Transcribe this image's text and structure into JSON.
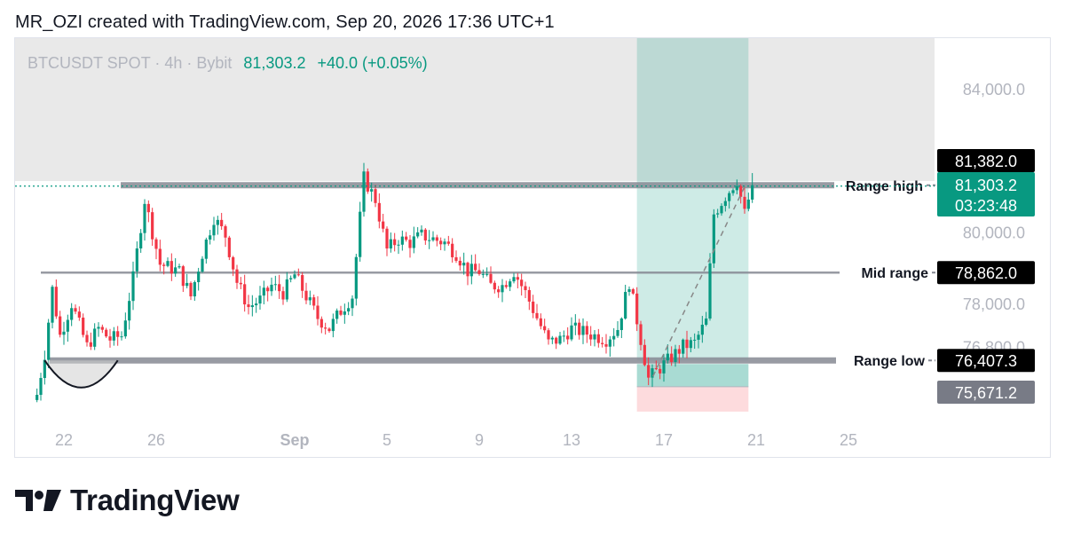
{
  "header": {
    "text": "MR_OZI created with TradingView.com, Sep 20, 2026 17:36 UTC+1"
  },
  "legend": {
    "symbol": "BTCUSDT SPOT · 4h · Bybit",
    "price": "81,303.2",
    "change": "+40.0 (+0.05%)"
  },
  "brand": {
    "name": "TradingView",
    "logo_icon": "tradingview-logo-icon"
  },
  "colors": {
    "up": "#089981",
    "down": "#f23645",
    "level_line": "#868993",
    "tp_zone": "#089981",
    "sl_zone": "#f23645",
    "supply_zone": "#e9e9e9"
  },
  "chart_data": {
    "type": "candlestick",
    "timeframe": "4h",
    "y_axis": {
      "ticks": [
        {
          "value": 84000,
          "label": "84,000.0"
        },
        {
          "value": 80000,
          "label": "80,000.0"
        },
        {
          "value": 78000,
          "label": "78,000.0"
        },
        {
          "value": 76800,
          "label": "76,800.0"
        }
      ]
    },
    "x_axis": {
      "ticks": [
        {
          "date": "2026-08-22",
          "label": "22",
          "bold": false
        },
        {
          "date": "2026-08-26",
          "label": "26",
          "bold": false
        },
        {
          "date": "2026-09-01",
          "label": "Sep",
          "bold": true
        },
        {
          "date": "2026-09-05",
          "label": "5",
          "bold": false
        },
        {
          "date": "2026-09-09",
          "label": "9",
          "bold": false
        },
        {
          "date": "2026-09-13",
          "label": "13",
          "bold": false
        },
        {
          "date": "2026-09-17",
          "label": "17",
          "bold": false
        },
        {
          "date": "2026-09-21",
          "label": "21",
          "bold": false
        },
        {
          "date": "2026-09-25",
          "label": "25",
          "bold": false
        }
      ]
    },
    "levels": [
      {
        "name": "Range high",
        "value": 81303.2
      },
      {
        "name": "Mid range",
        "value": 78862.0
      },
      {
        "name": "Range low",
        "value": 76407.3
      }
    ],
    "price_labels": [
      {
        "text": "81,382.0",
        "value": 81382.0,
        "style": "dark"
      },
      {
        "text": "81,303.2",
        "value": 81303.2,
        "style": "current"
      },
      {
        "text": "03:23:48",
        "style": "countdown"
      },
      {
        "text": "78,862.0",
        "value": 78862.0,
        "style": "dark"
      },
      {
        "text": "76,407.3",
        "value": 76407.3,
        "style": "dark"
      },
      {
        "text": "75,671.2",
        "value": 75671.2,
        "style": "gray"
      }
    ],
    "supply_zone": {
      "from": 81420,
      "to": 85500
    },
    "position": {
      "type": "long",
      "start": "2026-09-15T20:00",
      "end": "2026-09-20T16:00",
      "entry": 76407.3,
      "target": 85500,
      "stop": 75671.2
    },
    "pattern": {
      "type": "rounded-bottom",
      "start": "2026-08-21T04:00",
      "end": "2026-08-24T08:00",
      "bottom": 75650
    },
    "anchors": [
      [
        "2026-08-20T20:00",
        75450
      ],
      [
        "2026-08-21T04:00",
        76600
      ],
      [
        "2026-08-21T12:00",
        78400
      ],
      [
        "2026-08-21T20:00",
        77100
      ],
      [
        "2026-08-22T08:00",
        78000
      ],
      [
        "2026-08-23T00:00",
        76800
      ],
      [
        "2026-08-23T12:00",
        77300
      ],
      [
        "2026-08-24T00:00",
        77000
      ],
      [
        "2026-08-24T12:00",
        77100
      ],
      [
        "2026-08-25T00:00",
        78700
      ],
      [
        "2026-08-25T12:00",
        80900
      ],
      [
        "2026-08-26T04:00",
        79100
      ],
      [
        "2026-08-27T00:00",
        78900
      ],
      [
        "2026-08-27T12:00",
        78200
      ],
      [
        "2026-08-28T00:00",
        79400
      ],
      [
        "2026-08-28T12:00",
        80400
      ],
      [
        "2026-08-29T00:00",
        79900
      ],
      [
        "2026-08-29T12:00",
        78600
      ],
      [
        "2026-08-30T00:00",
        77900
      ],
      [
        "2026-08-30T12:00",
        78100
      ],
      [
        "2026-08-31T00:00",
        78500
      ],
      [
        "2026-08-31T12:00",
        78300
      ],
      [
        "2026-09-01T00:00",
        78800
      ],
      [
        "2026-09-01T12:00",
        78200
      ],
      [
        "2026-09-02T00:00",
        77600
      ],
      [
        "2026-09-02T12:00",
        77300
      ],
      [
        "2026-09-03T00:00",
        77800
      ],
      [
        "2026-09-03T12:00",
        78200
      ],
      [
        "2026-09-04T00:00",
        81500
      ],
      [
        "2026-09-04T12:00",
        80900
      ],
      [
        "2026-09-05T00:00",
        79500
      ],
      [
        "2026-09-05T12:00",
        79800
      ],
      [
        "2026-09-06T00:00",
        79700
      ],
      [
        "2026-09-06T12:00",
        79900
      ],
      [
        "2026-09-07T00:00",
        79800
      ],
      [
        "2026-09-07T12:00",
        79700
      ],
      [
        "2026-09-08T00:00",
        79400
      ],
      [
        "2026-09-08T12:00",
        78900
      ],
      [
        "2026-09-09T00:00",
        78900
      ],
      [
        "2026-09-09T12:00",
        78500
      ],
      [
        "2026-09-10T00:00",
        78500
      ],
      [
        "2026-09-10T12:00",
        78900
      ],
      [
        "2026-09-11T00:00",
        78300
      ],
      [
        "2026-09-11T12:00",
        77600
      ],
      [
        "2026-09-12T00:00",
        76900
      ],
      [
        "2026-09-12T12:00",
        77000
      ],
      [
        "2026-09-13T00:00",
        77300
      ],
      [
        "2026-09-13T12:00",
        77200
      ],
      [
        "2026-09-14T00:00",
        77100
      ],
      [
        "2026-09-14T12:00",
        77000
      ],
      [
        "2026-09-15T00:00",
        77300
      ],
      [
        "2026-09-15T12:00",
        78600
      ],
      [
        "2026-09-16T00:00",
        77000
      ],
      [
        "2026-09-16T08:00",
        75900
      ],
      [
        "2026-09-16T20:00",
        76200
      ],
      [
        "2026-09-17T08:00",
        76500
      ],
      [
        "2026-09-17T20:00",
        76800
      ],
      [
        "2026-09-18T08:00",
        76900
      ],
      [
        "2026-09-18T20:00",
        77500
      ],
      [
        "2026-09-19T04:00",
        80500
      ],
      [
        "2026-09-19T16:00",
        81000
      ],
      [
        "2026-09-20T04:00",
        81450
      ],
      [
        "2026-09-20T12:00",
        80500
      ],
      [
        "2026-09-20T20:00",
        81303.2
      ]
    ]
  }
}
